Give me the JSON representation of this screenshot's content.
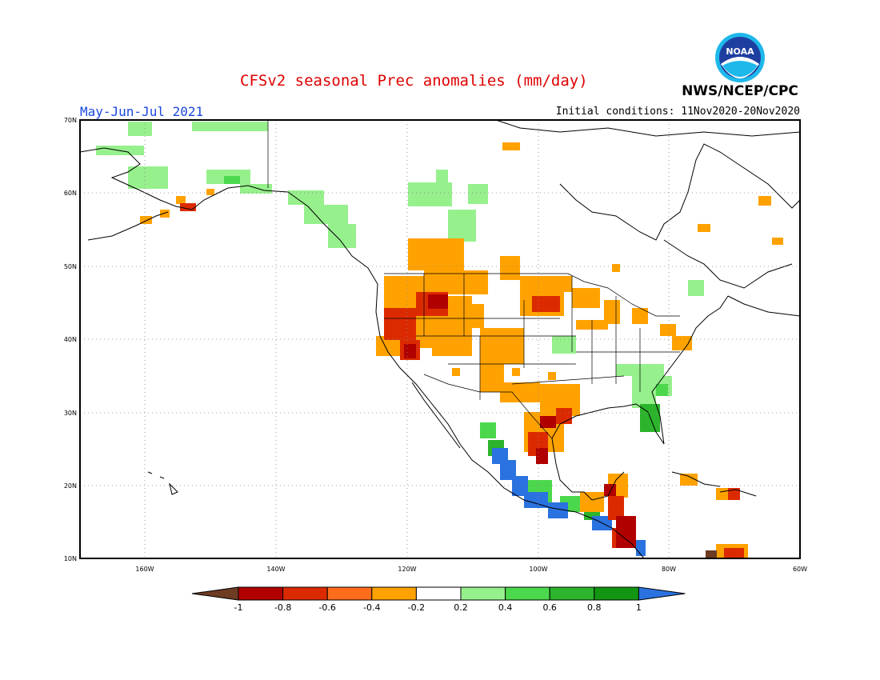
{
  "map": {
    "title": "CFSv2 seasonal Prec anomalies (mm/day)",
    "period": "May-Jun-Jul 2021",
    "initial_conditions": "Initial conditions: 11Nov2020-20Nov2020",
    "agency": "NWS/NCEP/CPC",
    "logo_text": "NOAA",
    "lat_labels": [
      "70N",
      "60N",
      "50N",
      "40N",
      "30N",
      "20N",
      "10N"
    ],
    "lon_labels": [
      "160W",
      "140W",
      "120W",
      "100W",
      "80W",
      "60W"
    ],
    "colorbar": {
      "labels": [
        "-1",
        "-0.8",
        "-0.6",
        "-0.4",
        "-0.2",
        "0.2",
        "0.4",
        "0.6",
        "0.8",
        "1"
      ],
      "colors": [
        "#6e3b23",
        "#b00000",
        "#dc2a00",
        "#ff6c1c",
        "#ffa200",
        "#ffffff",
        "#96f08c",
        "#4cd84c",
        "#2cb42c",
        "#129612",
        "#2a72e0"
      ]
    },
    "regions": [
      {
        "name": "west-us-dry",
        "color": "#ffa200"
      },
      {
        "name": "southwest-dry-core",
        "color": "#dc2a00"
      },
      {
        "name": "mexico-pacific-wet",
        "color": "#2a72e0"
      },
      {
        "name": "central-america-dry",
        "color": "#b00000"
      },
      {
        "name": "southeast-us-wet",
        "color": "#4cd84c"
      },
      {
        "name": "alaska-wet",
        "color": "#96f08c"
      }
    ]
  }
}
